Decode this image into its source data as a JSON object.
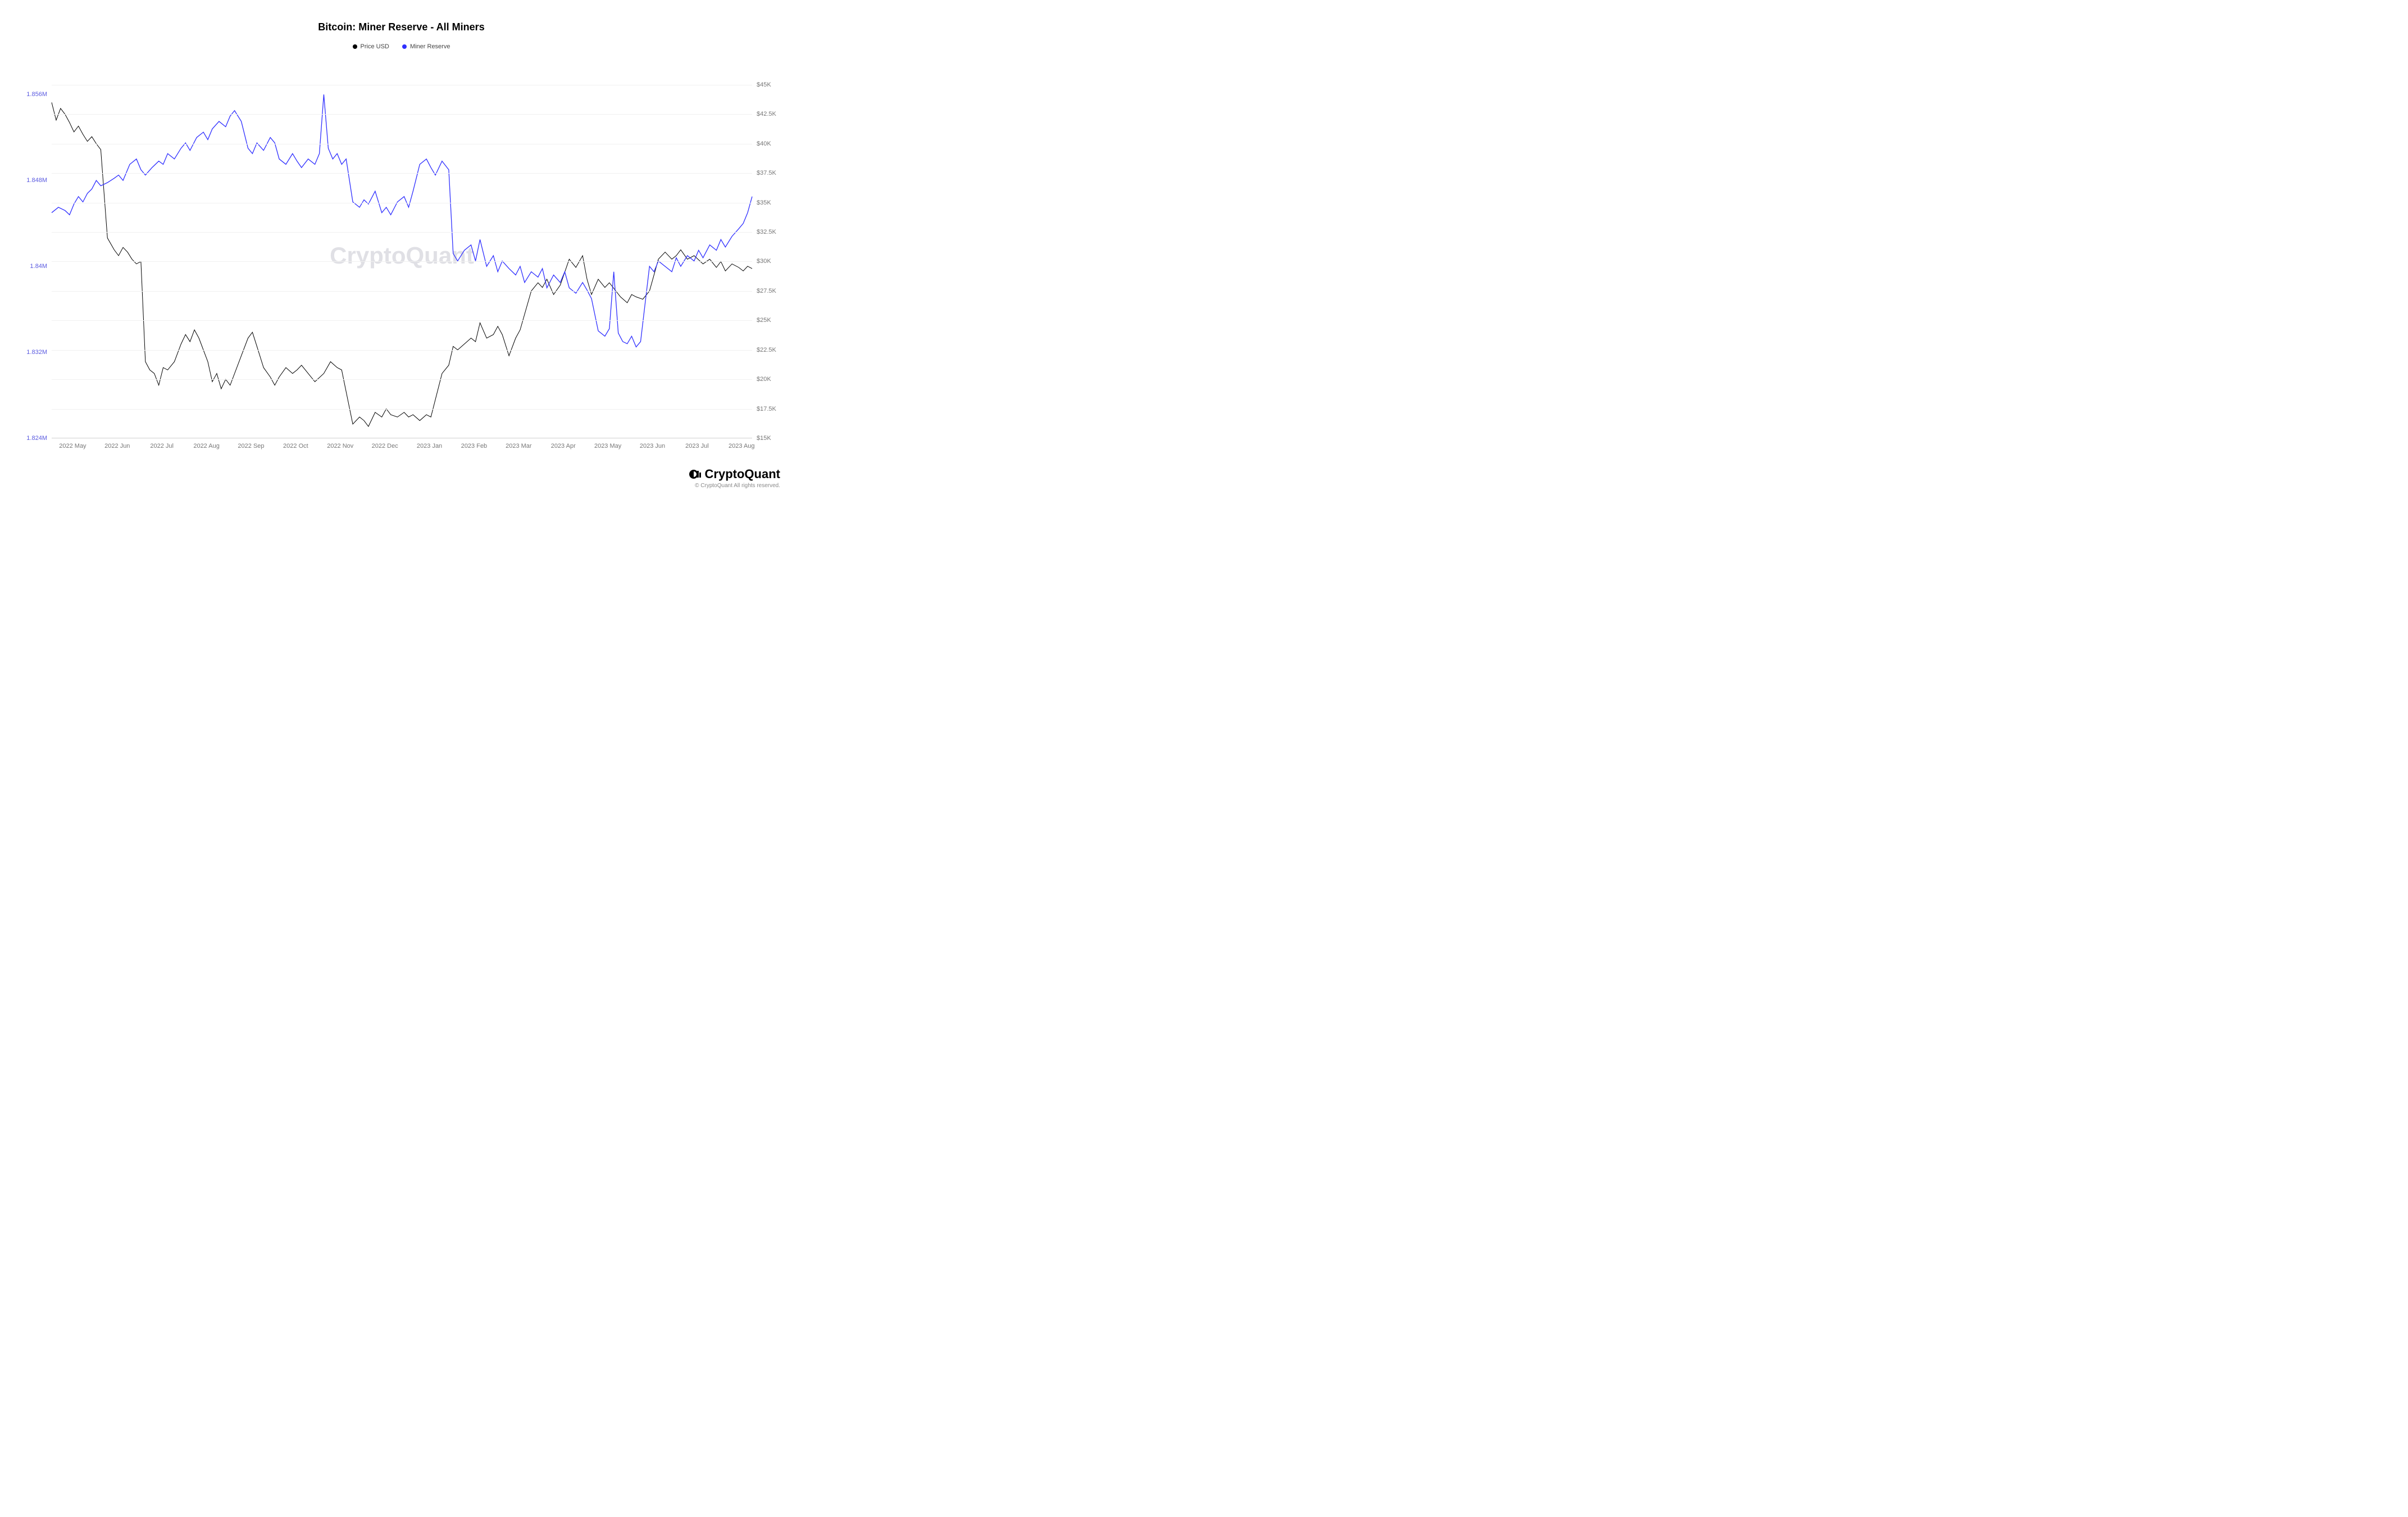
{
  "chart": {
    "type": "line",
    "title": "Bitcoin: Miner Reserve - All Miners",
    "title_fontsize": 18,
    "title_color": "#000000",
    "background_color": "#ffffff",
    "watermark_text": "CryptoQuant",
    "watermark_color": "#e0e0e5",
    "grid_color": "#f0f0f0",
    "axis_color": "#dddddd",
    "legend": [
      {
        "label": "Price USD",
        "color": "#000000"
      },
      {
        "label": "Miner Reserve",
        "color": "#3030ff"
      }
    ],
    "x_axis": {
      "labels": [
        "2022 May",
        "2022 Jun",
        "2022 Jul",
        "2022 Aug",
        "2022 Sep",
        "2022 Oct",
        "2022 Nov",
        "2022 Dec",
        "2023 Jan",
        "2023 Feb",
        "2023 Mar",
        "2023 Apr",
        "2023 May",
        "2023 Jun",
        "2023 Jul",
        "2023 Aug"
      ],
      "label_color": "#777777",
      "label_fontsize": 11
    },
    "y_left": {
      "label_color": "#5a5ae0",
      "label_fontsize": 11,
      "min": 1.824,
      "max": 1.858,
      "ticks": [
        {
          "value": 1.824,
          "label": "1.824M"
        },
        {
          "value": 1.832,
          "label": "1.832M"
        },
        {
          "value": 1.84,
          "label": "1.84M"
        },
        {
          "value": 1.848,
          "label": "1.848M"
        },
        {
          "value": 1.856,
          "label": "1.856M"
        }
      ]
    },
    "y_right": {
      "label_color": "#777777",
      "label_fontsize": 11,
      "min": 15000,
      "max": 46000,
      "ticks": [
        {
          "value": 15000,
          "label": "$15K"
        },
        {
          "value": 17500,
          "label": "$17.5K"
        },
        {
          "value": 20000,
          "label": "$20K"
        },
        {
          "value": 22500,
          "label": "$22.5K"
        },
        {
          "value": 25000,
          "label": "$25K"
        },
        {
          "value": 27500,
          "label": "$27.5K"
        },
        {
          "value": 30000,
          "label": "$30K"
        },
        {
          "value": 32500,
          "label": "$32.5K"
        },
        {
          "value": 35000,
          "label": "$35K"
        },
        {
          "value": 37500,
          "label": "$37.5K"
        },
        {
          "value": 40000,
          "label": "$40K"
        },
        {
          "value": 42500,
          "label": "$42.5K"
        },
        {
          "value": 45000,
          "label": "$45K"
        }
      ]
    },
    "series_price": {
      "color": "#000000",
      "line_width": 1,
      "axis": "right",
      "data": [
        [
          0.0,
          43500
        ],
        [
          0.02,
          42000
        ],
        [
          0.04,
          43000
        ],
        [
          0.06,
          42500
        ],
        [
          0.08,
          41800
        ],
        [
          0.1,
          41000
        ],
        [
          0.12,
          41500
        ],
        [
          0.14,
          40800
        ],
        [
          0.16,
          40200
        ],
        [
          0.18,
          40600
        ],
        [
          0.2,
          40000
        ],
        [
          0.22,
          39500
        ],
        [
          0.25,
          32000
        ],
        [
          0.28,
          31000
        ],
        [
          0.3,
          30500
        ],
        [
          0.32,
          31200
        ],
        [
          0.34,
          30800
        ],
        [
          0.36,
          30200
        ],
        [
          0.38,
          29800
        ],
        [
          0.4,
          30000
        ],
        [
          0.42,
          21500
        ],
        [
          0.44,
          20800
        ],
        [
          0.46,
          20500
        ],
        [
          0.48,
          19500
        ],
        [
          0.5,
          21000
        ],
        [
          0.52,
          20800
        ],
        [
          0.55,
          21500
        ],
        [
          0.58,
          23000
        ],
        [
          0.6,
          23800
        ],
        [
          0.62,
          23200
        ],
        [
          0.64,
          24200
        ],
        [
          0.66,
          23500
        ],
        [
          0.7,
          21500
        ],
        [
          0.72,
          19800
        ],
        [
          0.74,
          20500
        ],
        [
          0.76,
          19200
        ],
        [
          0.78,
          20000
        ],
        [
          0.8,
          19500
        ],
        [
          0.85,
          22000
        ],
        [
          0.88,
          23500
        ],
        [
          0.9,
          24000
        ],
        [
          0.92,
          22800
        ],
        [
          0.95,
          21000
        ],
        [
          0.98,
          20200
        ],
        [
          1.0,
          19500
        ],
        [
          1.02,
          20200
        ],
        [
          1.05,
          21000
        ],
        [
          1.08,
          20500
        ],
        [
          1.1,
          20800
        ],
        [
          1.12,
          21200
        ],
        [
          1.15,
          20500
        ],
        [
          1.18,
          19800
        ],
        [
          1.22,
          20500
        ],
        [
          1.25,
          21500
        ],
        [
          1.28,
          21000
        ],
        [
          1.3,
          20800
        ],
        [
          1.35,
          16200
        ],
        [
          1.38,
          16800
        ],
        [
          1.4,
          16500
        ],
        [
          1.42,
          16000
        ],
        [
          1.45,
          17200
        ],
        [
          1.48,
          16800
        ],
        [
          1.5,
          17500
        ],
        [
          1.52,
          17000
        ],
        [
          1.55,
          16800
        ],
        [
          1.58,
          17200
        ],
        [
          1.6,
          16800
        ],
        [
          1.62,
          17000
        ],
        [
          1.65,
          16500
        ],
        [
          1.68,
          17000
        ],
        [
          1.7,
          16800
        ],
        [
          1.75,
          20500
        ],
        [
          1.78,
          21200
        ],
        [
          1.8,
          22800
        ],
        [
          1.82,
          22500
        ],
        [
          1.85,
          23000
        ],
        [
          1.88,
          23500
        ],
        [
          1.9,
          23200
        ],
        [
          1.92,
          24800
        ],
        [
          1.95,
          23500
        ],
        [
          1.98,
          23800
        ],
        [
          2.0,
          24500
        ],
        [
          2.02,
          23800
        ],
        [
          2.05,
          22000
        ],
        [
          2.08,
          23500
        ],
        [
          2.1,
          24200
        ],
        [
          2.15,
          27500
        ],
        [
          2.18,
          28200
        ],
        [
          2.2,
          27800
        ],
        [
          2.22,
          28500
        ],
        [
          2.25,
          27200
        ],
        [
          2.28,
          28000
        ],
        [
          2.32,
          30200
        ],
        [
          2.35,
          29500
        ],
        [
          2.38,
          30500
        ],
        [
          2.4,
          28500
        ],
        [
          2.42,
          27200
        ],
        [
          2.45,
          28500
        ],
        [
          2.48,
          27800
        ],
        [
          2.5,
          28200
        ],
        [
          2.55,
          27000
        ],
        [
          2.58,
          26500
        ],
        [
          2.6,
          27200
        ],
        [
          2.62,
          27000
        ],
        [
          2.65,
          26800
        ],
        [
          2.68,
          27500
        ],
        [
          2.72,
          30200
        ],
        [
          2.75,
          30800
        ],
        [
          2.78,
          30200
        ],
        [
          2.8,
          30500
        ],
        [
          2.82,
          31000
        ],
        [
          2.85,
          30200
        ],
        [
          2.88,
          30500
        ],
        [
          2.92,
          29800
        ],
        [
          2.95,
          30200
        ],
        [
          2.98,
          29500
        ],
        [
          3.0,
          30000
        ],
        [
          3.02,
          29200
        ],
        [
          3.05,
          29800
        ],
        [
          3.08,
          29500
        ],
        [
          3.1,
          29200
        ],
        [
          3.12,
          29600
        ],
        [
          3.14,
          29400
        ]
      ]
    },
    "series_reserve": {
      "color": "#3030ff",
      "line_width": 1.3,
      "axis": "left",
      "data": [
        [
          0.0,
          1.845
        ],
        [
          0.03,
          1.8455
        ],
        [
          0.06,
          1.8452
        ],
        [
          0.08,
          1.8448
        ],
        [
          0.1,
          1.8458
        ],
        [
          0.12,
          1.8465
        ],
        [
          0.14,
          1.846
        ],
        [
          0.16,
          1.8468
        ],
        [
          0.18,
          1.8472
        ],
        [
          0.2,
          1.848
        ],
        [
          0.22,
          1.8475
        ],
        [
          0.25,
          1.8478
        ],
        [
          0.28,
          1.8482
        ],
        [
          0.3,
          1.8485
        ],
        [
          0.32,
          1.848
        ],
        [
          0.35,
          1.8495
        ],
        [
          0.38,
          1.85
        ],
        [
          0.4,
          1.849
        ],
        [
          0.42,
          1.8485
        ],
        [
          0.45,
          1.8492
        ],
        [
          0.48,
          1.8498
        ],
        [
          0.5,
          1.8495
        ],
        [
          0.52,
          1.8505
        ],
        [
          0.55,
          1.85
        ],
        [
          0.58,
          1.851
        ],
        [
          0.6,
          1.8515
        ],
        [
          0.62,
          1.8508
        ],
        [
          0.65,
          1.852
        ],
        [
          0.68,
          1.8525
        ],
        [
          0.7,
          1.8518
        ],
        [
          0.72,
          1.8528
        ],
        [
          0.75,
          1.8535
        ],
        [
          0.78,
          1.853
        ],
        [
          0.8,
          1.854
        ],
        [
          0.82,
          1.8545
        ],
        [
          0.85,
          1.8535
        ],
        [
          0.88,
          1.851
        ],
        [
          0.9,
          1.8505
        ],
        [
          0.92,
          1.8515
        ],
        [
          0.95,
          1.8508
        ],
        [
          0.98,
          1.852
        ],
        [
          1.0,
          1.8515
        ],
        [
          1.02,
          1.85
        ],
        [
          1.05,
          1.8495
        ],
        [
          1.08,
          1.8505
        ],
        [
          1.1,
          1.8498
        ],
        [
          1.12,
          1.8492
        ],
        [
          1.15,
          1.85
        ],
        [
          1.18,
          1.8495
        ],
        [
          1.2,
          1.8505
        ],
        [
          1.22,
          1.856
        ],
        [
          1.24,
          1.851
        ],
        [
          1.26,
          1.85
        ],
        [
          1.28,
          1.8505
        ],
        [
          1.3,
          1.8495
        ],
        [
          1.32,
          1.85
        ],
        [
          1.35,
          1.846
        ],
        [
          1.38,
          1.8455
        ],
        [
          1.4,
          1.8462
        ],
        [
          1.42,
          1.8458
        ],
        [
          1.45,
          1.847
        ],
        [
          1.48,
          1.845
        ],
        [
          1.5,
          1.8455
        ],
        [
          1.52,
          1.8448
        ],
        [
          1.55,
          1.846
        ],
        [
          1.58,
          1.8465
        ],
        [
          1.6,
          1.8455
        ],
        [
          1.62,
          1.847
        ],
        [
          1.65,
          1.8495
        ],
        [
          1.68,
          1.85
        ],
        [
          1.7,
          1.8492
        ],
        [
          1.72,
          1.8485
        ],
        [
          1.75,
          1.8498
        ],
        [
          1.78,
          1.849
        ],
        [
          1.8,
          1.8412
        ],
        [
          1.82,
          1.8405
        ],
        [
          1.85,
          1.8415
        ],
        [
          1.88,
          1.842
        ],
        [
          1.9,
          1.8405
        ],
        [
          1.92,
          1.8425
        ],
        [
          1.95,
          1.84
        ],
        [
          1.98,
          1.841
        ],
        [
          2.0,
          1.8395
        ],
        [
          2.02,
          1.8405
        ],
        [
          2.05,
          1.8398
        ],
        [
          2.08,
          1.8392
        ],
        [
          2.1,
          1.84
        ],
        [
          2.12,
          1.8385
        ],
        [
          2.15,
          1.8395
        ],
        [
          2.18,
          1.839
        ],
        [
          2.2,
          1.8398
        ],
        [
          2.22,
          1.838
        ],
        [
          2.25,
          1.8392
        ],
        [
          2.28,
          1.8385
        ],
        [
          2.3,
          1.8395
        ],
        [
          2.32,
          1.838
        ],
        [
          2.35,
          1.8375
        ],
        [
          2.38,
          1.8385
        ],
        [
          2.4,
          1.8378
        ],
        [
          2.42,
          1.837
        ],
        [
          2.45,
          1.834
        ],
        [
          2.48,
          1.8335
        ],
        [
          2.5,
          1.8342
        ],
        [
          2.52,
          1.8395
        ],
        [
          2.54,
          1.8338
        ],
        [
          2.56,
          1.833
        ],
        [
          2.58,
          1.8328
        ],
        [
          2.6,
          1.8335
        ],
        [
          2.62,
          1.8325
        ],
        [
          2.64,
          1.833
        ],
        [
          2.68,
          1.84
        ],
        [
          2.7,
          1.8395
        ],
        [
          2.72,
          1.8405
        ],
        [
          2.75,
          1.84
        ],
        [
          2.78,
          1.8395
        ],
        [
          2.8,
          1.8408
        ],
        [
          2.82,
          1.84
        ],
        [
          2.85,
          1.841
        ],
        [
          2.88,
          1.8405
        ],
        [
          2.9,
          1.8415
        ],
        [
          2.92,
          1.8408
        ],
        [
          2.95,
          1.842
        ],
        [
          2.98,
          1.8415
        ],
        [
          3.0,
          1.8425
        ],
        [
          3.02,
          1.8418
        ],
        [
          3.05,
          1.8428
        ],
        [
          3.08,
          1.8435
        ],
        [
          3.1,
          1.844
        ],
        [
          3.12,
          1.845
        ],
        [
          3.14,
          1.8465
        ]
      ]
    }
  },
  "branding": {
    "name": "CryptoQuant",
    "copyright": "© CryptoQuant All rights reserved."
  }
}
